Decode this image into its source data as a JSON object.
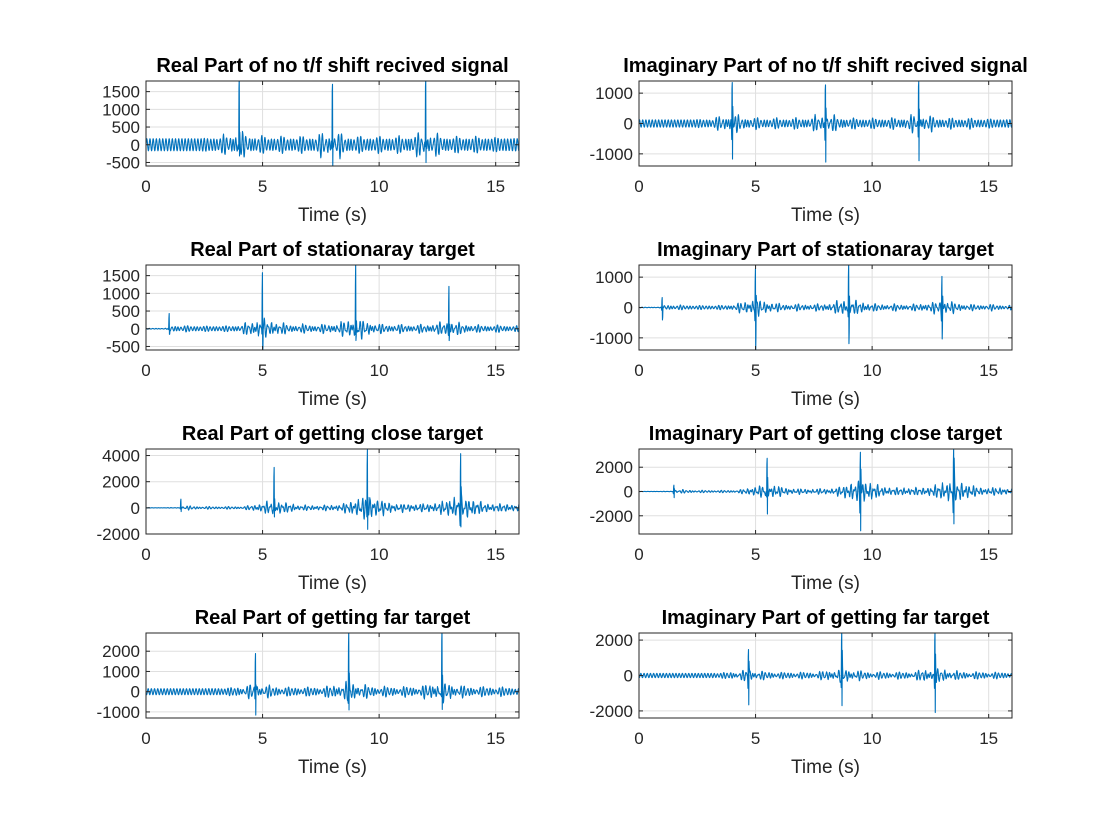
{
  "figure": {
    "background": "#ffffff",
    "line_color": "#0072BD",
    "grid_color": "#dfdfdf"
  },
  "chart_data": [
    {
      "type": "line",
      "title": "Real Part of no t/f shift recived signal",
      "xlabel": "Time (s)",
      "ylabel": "",
      "xlim": [
        0,
        16
      ],
      "ylim": [
        -600,
        1800
      ],
      "xticks": [
        0,
        5,
        10,
        15
      ],
      "yticks": [
        -500,
        0,
        500,
        1000,
        1500
      ],
      "grid": true,
      "signal": {
        "peaks": [
          4,
          8,
          12
        ],
        "peak_max": 1780,
        "peak_min": -550,
        "baseline_amplitude": 170,
        "noise_amplitude": 250,
        "onset": 0
      },
      "series": [
        {
          "color": "#0072BD"
        }
      ]
    },
    {
      "type": "line",
      "title": "Imaginary Part of no t/f shift recived signal",
      "xlabel": "Time (s)",
      "ylabel": "",
      "xlim": [
        0,
        16
      ],
      "ylim": [
        -1400,
        1400
      ],
      "xticks": [
        0,
        5,
        10,
        15
      ],
      "yticks": [
        -1000,
        0,
        1000
      ],
      "grid": true,
      "signal": {
        "peaks": [
          4,
          8,
          12
        ],
        "peak_max": 1350,
        "peak_min": -1400,
        "baseline_amplitude": 120,
        "noise_amplitude": 220,
        "onset": 0
      },
      "series": [
        {
          "color": "#0072BD"
        }
      ]
    },
    {
      "type": "line",
      "title": "Real Part of stationaray target",
      "xlabel": "Time (s)",
      "ylabel": "",
      "xlim": [
        0,
        16
      ],
      "ylim": [
        -600,
        1800
      ],
      "xticks": [
        0,
        5,
        10,
        15
      ],
      "yticks": [
        -500,
        0,
        500,
        1000,
        1500
      ],
      "grid": true,
      "signal": {
        "peaks": [
          1,
          5,
          9,
          13
        ],
        "peak_scale": [
          0.25,
          1.0,
          1.0,
          0.7
        ],
        "peak_max": 1800,
        "peak_min": -550,
        "baseline_amplitude": 60,
        "noise_amplitude": 250,
        "onset": 1
      },
      "series": [
        {
          "color": "#0072BD"
        }
      ]
    },
    {
      "type": "line",
      "title": "Imaginary Part of stationaray target",
      "xlabel": "Time (s)",
      "ylabel": "",
      "xlim": [
        0,
        16
      ],
      "ylim": [
        -1400,
        1400
      ],
      "xticks": [
        0,
        5,
        10,
        15
      ],
      "yticks": [
        -1000,
        0,
        1000
      ],
      "grid": true,
      "signal": {
        "peaks": [
          1,
          5,
          9,
          13
        ],
        "peak_scale": [
          0.25,
          1.0,
          1.0,
          0.8
        ],
        "peak_max": 1400,
        "peak_min": -1400,
        "baseline_amplitude": 50,
        "noise_amplitude": 250,
        "onset": 1
      },
      "series": [
        {
          "color": "#0072BD"
        }
      ]
    },
    {
      "type": "line",
      "title": "Real Part of getting close target",
      "xlabel": "Time (s)",
      "ylabel": "",
      "xlim": [
        0,
        16
      ],
      "ylim": [
        -2000,
        4500
      ],
      "xticks": [
        0,
        5,
        10,
        15
      ],
      "yticks": [
        -2000,
        0,
        2000,
        4000
      ],
      "grid": true,
      "signal": {
        "peaks": [
          1.5,
          5.5,
          9.5,
          13.5
        ],
        "peak_scale": [
          0.15,
          0.6,
          1.0,
          1.0
        ],
        "peak_max": 4500,
        "peak_min": -1800,
        "baseline_amplitude": 60,
        "noise_amplitude": 900,
        "onset": 1.5
      },
      "series": [
        {
          "color": "#0072BD"
        }
      ]
    },
    {
      "type": "line",
      "title": "Imaginary Part of getting close target",
      "xlabel": "Time (s)",
      "ylabel": "",
      "xlim": [
        0,
        16
      ],
      "ylim": [
        -3500,
        3500
      ],
      "xticks": [
        0,
        5,
        10,
        15
      ],
      "yticks": [
        -2000,
        0,
        2000
      ],
      "grid": true,
      "signal": {
        "peaks": [
          1.5,
          5.5,
          9.5,
          13.5
        ],
        "peak_scale": [
          0.15,
          0.65,
          1.0,
          1.0
        ],
        "peak_max": 3500,
        "peak_min": -3500,
        "baseline_amplitude": 60,
        "noise_amplitude": 900,
        "onset": 1.5
      },
      "series": [
        {
          "color": "#0072BD"
        }
      ]
    },
    {
      "type": "line",
      "title": "Real Part of getting far target",
      "xlabel": "Time (s)",
      "ylabel": "",
      "xlim": [
        0,
        16
      ],
      "ylim": [
        -1300,
        2900
      ],
      "xticks": [
        0,
        5,
        10,
        15
      ],
      "yticks": [
        -1000,
        0,
        1000,
        2000
      ],
      "grid": true,
      "signal": {
        "peaks": [
          4.7,
          8.7,
          12.7
        ],
        "peak_scale": [
          0.75,
          1.0,
          1.0
        ],
        "peak_max": 2900,
        "peak_min": -1300,
        "baseline_amplitude": 150,
        "noise_amplitude": 400,
        "onset": 0
      },
      "series": [
        {
          "color": "#0072BD"
        }
      ]
    },
    {
      "type": "line",
      "title": "Imaginary Part of getting far target",
      "xlabel": "Time (s)",
      "ylabel": "",
      "xlim": [
        0,
        16
      ],
      "ylim": [
        -2400,
        2400
      ],
      "xticks": [
        0,
        5,
        10,
        15
      ],
      "yticks": [
        -2000,
        0,
        2000
      ],
      "grid": true,
      "signal": {
        "peaks": [
          4.7,
          8.7,
          12.7
        ],
        "peak_scale": [
          0.7,
          0.95,
          1.0
        ],
        "peak_max": 2400,
        "peak_min": -2400,
        "baseline_amplitude": 120,
        "noise_amplitude": 350,
        "onset": 0
      },
      "series": [
        {
          "color": "#0072BD"
        }
      ]
    }
  ]
}
